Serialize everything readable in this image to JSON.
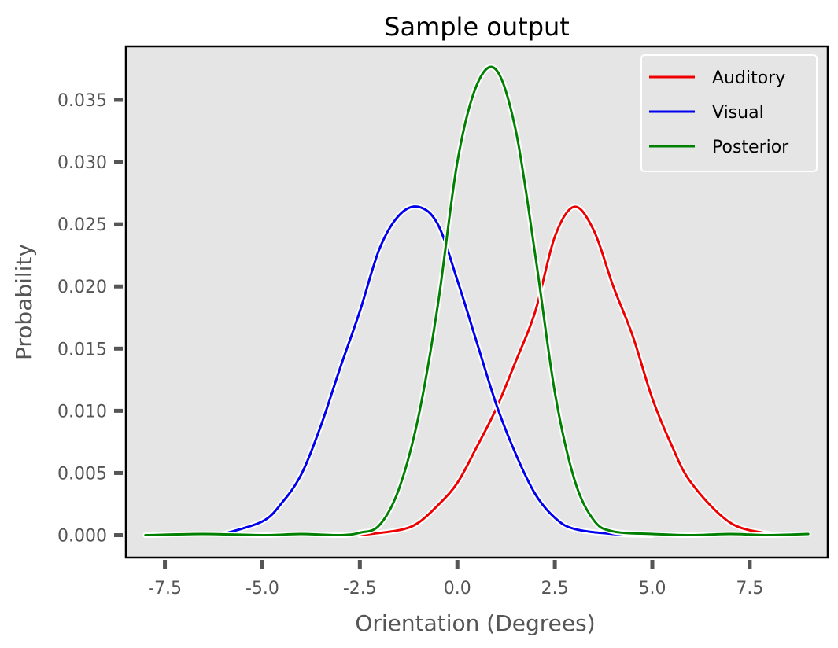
{
  "chart_data": {
    "type": "line",
    "title": "Sample output",
    "xlabel": "Orientation (Degrees)",
    "ylabel": "Probability",
    "xlim": [
      -8.5,
      9.5
    ],
    "ylim": [
      -0.0018,
      0.0393
    ],
    "xticks": [
      -7.5,
      -5.0,
      -2.5,
      0.0,
      2.5,
      5.0,
      7.5
    ],
    "xtick_labels": [
      "-7.5",
      "-5.0",
      "-2.5",
      "0.0",
      "2.5",
      "5.0",
      "7.5"
    ],
    "yticks": [
      0.0,
      0.005,
      0.01,
      0.015,
      0.02,
      0.025,
      0.03,
      0.035
    ],
    "ytick_labels": [
      "0.000",
      "0.005",
      "0.010",
      "0.015",
      "0.020",
      "0.025",
      "0.030",
      "0.035"
    ],
    "grid": false,
    "legend_position": "top-right",
    "background": "#e5e5e5",
    "series": [
      {
        "name": "Auditory",
        "color": "#ee0000",
        "x": [
          -2.5,
          -1.5,
          -1.0,
          -0.5,
          0.0,
          0.5,
          1.0,
          1.5,
          2.0,
          2.5,
          3.0,
          3.5,
          4.0,
          4.5,
          5.0,
          5.5,
          6.0,
          7.0,
          8.0
        ],
        "y": [
          0.0,
          0.0004,
          0.001,
          0.0024,
          0.0042,
          0.0071,
          0.0102,
          0.014,
          0.018,
          0.024,
          0.0264,
          0.0245,
          0.02,
          0.016,
          0.011,
          0.0072,
          0.0042,
          0.001,
          0.0001
        ]
      },
      {
        "name": "Visual",
        "color": "#0000ee",
        "x": [
          -6.0,
          -5.0,
          -4.5,
          -4.0,
          -3.5,
          -3.0,
          -2.5,
          -2.0,
          -1.5,
          -1.0,
          -0.5,
          0.0,
          0.5,
          1.0,
          1.5,
          2.0,
          2.5,
          3.0,
          4.0,
          5.0
        ],
        "y": [
          0.0001,
          0.0011,
          0.0026,
          0.0049,
          0.0088,
          0.0135,
          0.018,
          0.023,
          0.0257,
          0.0264,
          0.025,
          0.0205,
          0.0155,
          0.0105,
          0.0065,
          0.0033,
          0.0014,
          0.0005,
          0.0001,
          0.0
        ]
      },
      {
        "name": "Posterior",
        "color": "#008000",
        "x": [
          -8.0,
          -6.5,
          -5.0,
          -4.0,
          -3.0,
          -2.5,
          -2.0,
          -1.5,
          -1.0,
          -0.5,
          0.0,
          0.5,
          1.0,
          1.5,
          2.0,
          2.5,
          3.0,
          3.5,
          4.0,
          5.0,
          6.0,
          7.0,
          8.0,
          9.0
        ],
        "y": [
          0.0,
          0.0001,
          0.0,
          0.0001,
          0.0,
          0.0002,
          0.0008,
          0.0037,
          0.0095,
          0.0185,
          0.03,
          0.0362,
          0.0374,
          0.0325,
          0.0225,
          0.0115,
          0.0045,
          0.0012,
          0.0003,
          0.0001,
          0.0,
          0.0001,
          0.0,
          0.0001
        ]
      }
    ]
  }
}
